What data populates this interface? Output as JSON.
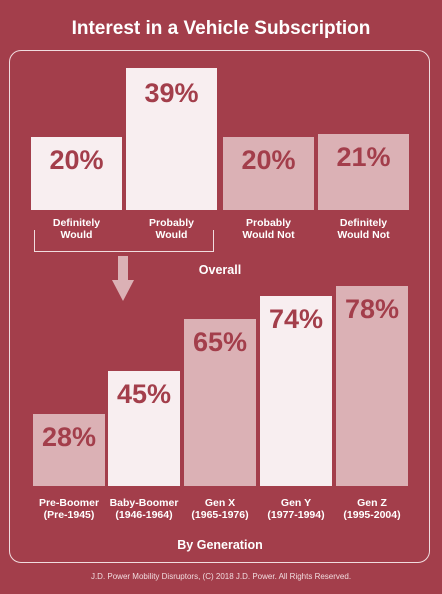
{
  "title": "Interest in a Vehicle Subscription",
  "footer": "J.D. Power Mobility Disruptors, (C) 2018 J.D. Power. All Rights Reserved.",
  "colors": {
    "background": "#a33e4b",
    "bar_light": "#f8eef0",
    "bar_muted": "#dbb1b5",
    "value_text": "#a33e4b"
  },
  "chart_data": [
    {
      "type": "bar",
      "title": "Overall",
      "categories": [
        "Definitely\nWould",
        "Probably\nWould",
        "Probably\nWould Not",
        "Definitely\nWould Not"
      ],
      "values": [
        20,
        39,
        20,
        21
      ],
      "value_labels": [
        "20%",
        "39%",
        "20%",
        "21%"
      ],
      "ylim": [
        0,
        39
      ]
    },
    {
      "type": "bar",
      "title": "By Generation",
      "categories": [
        "Pre-Boomer\n(Pre-1945)",
        "Baby-Boomer\n(1946-1964)",
        "Gen X\n(1965-1976)",
        "Gen Y\n(1977-1994)",
        "Gen Z\n(1995-2004)"
      ],
      "values": [
        28,
        45,
        65,
        74,
        78
      ],
      "value_labels": [
        "28%",
        "45%",
        "65%",
        "74%",
        "78%"
      ],
      "ylim": [
        0,
        78
      ]
    }
  ]
}
